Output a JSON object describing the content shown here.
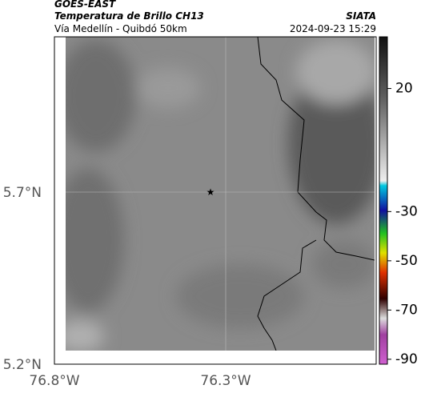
{
  "header": {
    "product": "GOES-EAST",
    "title": "Temperatura de Brillo CH13",
    "region": "Vía Medellín - Quibdó 50km",
    "agency": "SIATA",
    "timestamp": "2024-09-23 15:29"
  },
  "map": {
    "lat_labels": [
      "5.7°N",
      "5.2°N"
    ],
    "lon_labels": [
      "76.8°W",
      "76.3°W"
    ]
  },
  "colorbar": {
    "lim": [
      -92,
      41
    ],
    "ticks": [
      20,
      -30,
      -50,
      -70,
      -90
    ]
  }
}
